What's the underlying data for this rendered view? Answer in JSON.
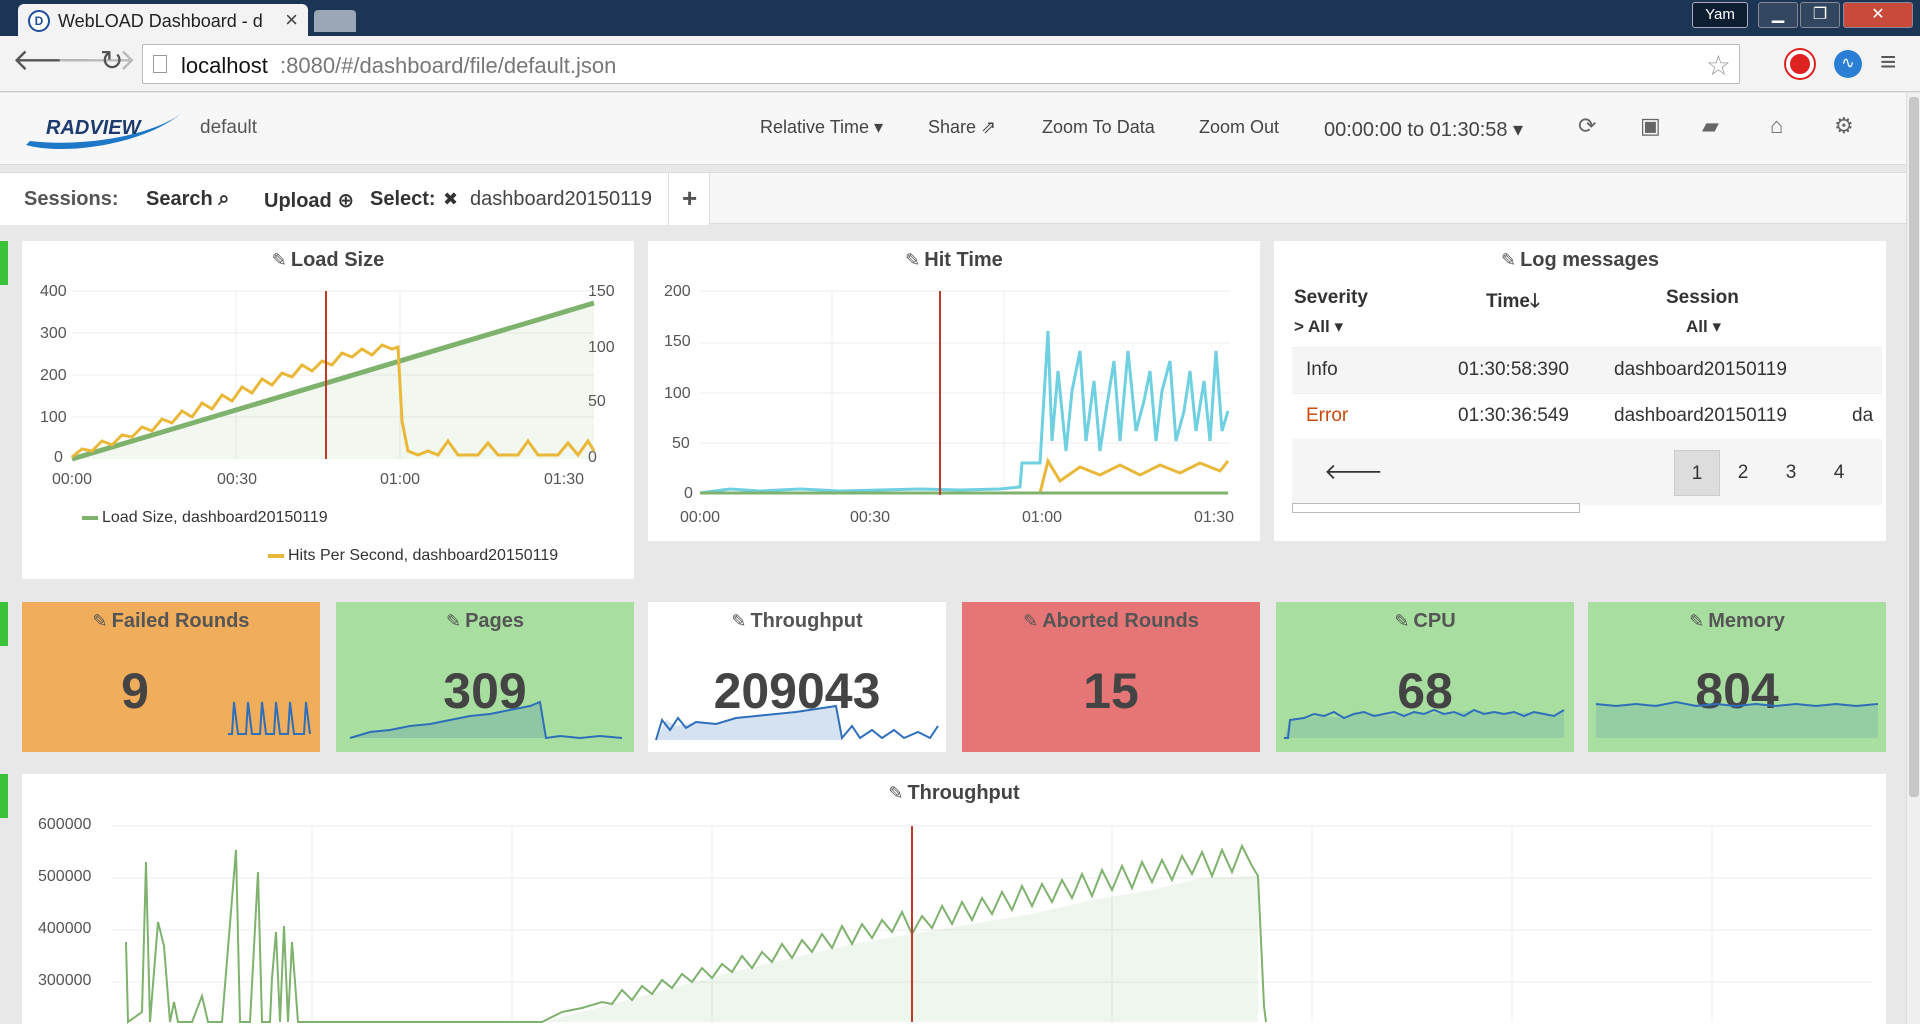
{
  "browser": {
    "tab_title": "WebLOAD Dashboard - d",
    "tab_close": "×",
    "favicon": "D",
    "user": "Yam",
    "url_host": "localhost",
    "url_rest": ":8080/#/dashboard/file/default.json",
    "min": "▁",
    "max": "❐",
    "close": "✕"
  },
  "header": {
    "logo": "RADVIEW",
    "dashboard_name": "default",
    "relative_time": "Relative Time ▾",
    "share": "Share ⇗",
    "zoom_to_data": "Zoom To Data",
    "zoom_out": "Zoom Out",
    "time_range": "00:00:00 to 01:30:58 ▾",
    "icons": [
      "refresh-icon",
      "save-icon",
      "folder-open-icon",
      "home-icon",
      "gear-icon"
    ]
  },
  "sessions": {
    "label": "Sessions:",
    "search": "Search ⌕",
    "upload": "Upload ⊕",
    "select": "Select:",
    "remove": "✖",
    "session": "dashboard20150119",
    "add": "+"
  },
  "load_size": {
    "title": "Load Size",
    "left_ticks": [
      "400",
      "300",
      "200",
      "100",
      "0"
    ],
    "right_ticks": [
      "150",
      "100",
      "50",
      "0"
    ],
    "x_ticks": [
      "00:00",
      "00:30",
      "01:00",
      "01:30"
    ],
    "legend": [
      "Load Size, dashboard20150119",
      "Hits Per Second, dashboard20150119"
    ],
    "colors": {
      "load": "#7eb26d",
      "hits": "#eab839",
      "marker": "#c0392b"
    }
  },
  "hit_time": {
    "title": "Hit Time",
    "y_ticks": [
      "200",
      "150",
      "100",
      "50",
      "0"
    ],
    "x_ticks": [
      "00:00",
      "00:30",
      "01:00",
      "01:30"
    ],
    "colors": {
      "a": "#6ed0e0",
      "b": "#eab839",
      "c": "#7eb26d"
    }
  },
  "log": {
    "title": "Log messages",
    "col_severity": "Severity",
    "col_time": "Time🡓",
    "col_session": "Session",
    "filter_severity": "> All ▾",
    "filter_session": "All ▾",
    "rows": [
      {
        "severity": "Info",
        "time": "01:30:58:390",
        "session": "dashboard20150119",
        "extra": ""
      },
      {
        "severity": "Error",
        "time": "01:30:36:549",
        "session": "dashboard20150119",
        "extra": "da"
      }
    ],
    "prev": "🡐",
    "pages": [
      "1",
      "2",
      "3",
      "4"
    ]
  },
  "tiles": [
    {
      "title": "Failed Rounds",
      "value": "9",
      "color": "#f0ad5b"
    },
    {
      "title": "Pages",
      "value": "309",
      "color": "#a8dea0"
    },
    {
      "title": "Throughput",
      "value": "209043",
      "color": "#ffffff"
    },
    {
      "title": "Aborted Rounds",
      "value": "15",
      "color": "#e67575"
    },
    {
      "title": "CPU",
      "value": "68",
      "color": "#a8dea0"
    },
    {
      "title": "Memory",
      "value": "804",
      "color": "#a8dea0"
    }
  ],
  "throughput": {
    "title": "Throughput",
    "y_ticks": [
      "600000",
      "500000",
      "400000",
      "300000"
    ]
  }
}
